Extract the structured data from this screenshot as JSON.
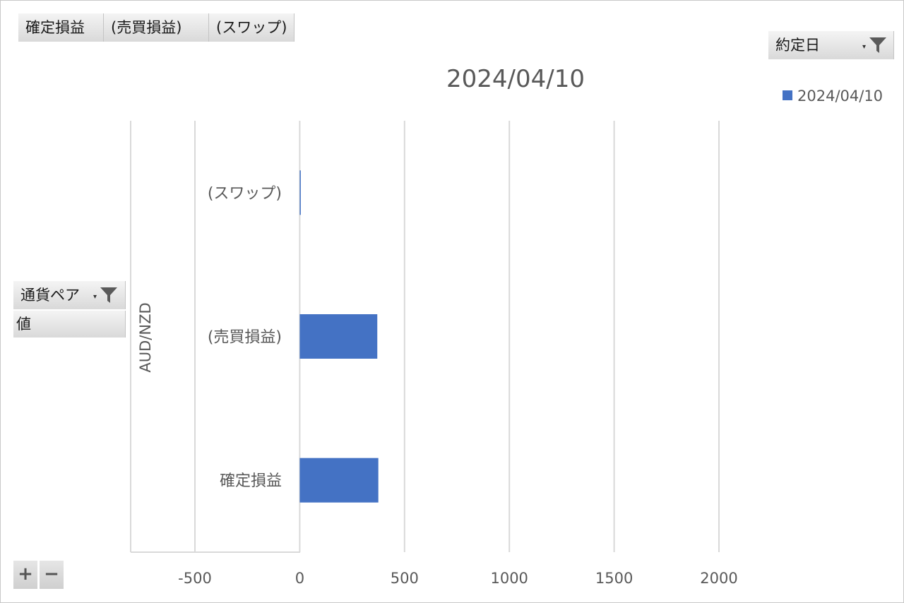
{
  "value_fields": [
    "確定損益",
    "(売買損益)",
    "(スワップ)"
  ],
  "filter_field": {
    "label": "約定日"
  },
  "row_field": {
    "label": "通貨ペア"
  },
  "values_field": {
    "label": "値"
  },
  "zoom": {
    "plus": "+",
    "minus": "−"
  },
  "icons": {
    "filter": "funnel-icon",
    "dropdown": "dropdown-arrow-icon"
  },
  "chart_data": {
    "type": "bar",
    "orientation": "horizontal",
    "title": "2024/04/10",
    "group_label": "AUD/NZD",
    "categories": [
      "(スワップ)",
      "(売買損益)",
      "確定損益"
    ],
    "series": [
      {
        "name": "2024/04/10",
        "values": [
          5,
          370,
          375
        ],
        "color": "#4472c4"
      }
    ],
    "xlim": [
      -500,
      2000
    ],
    "xticks": [
      -500,
      0,
      500,
      1000,
      1500,
      2000
    ],
    "grid": true,
    "legend": "top-right"
  }
}
